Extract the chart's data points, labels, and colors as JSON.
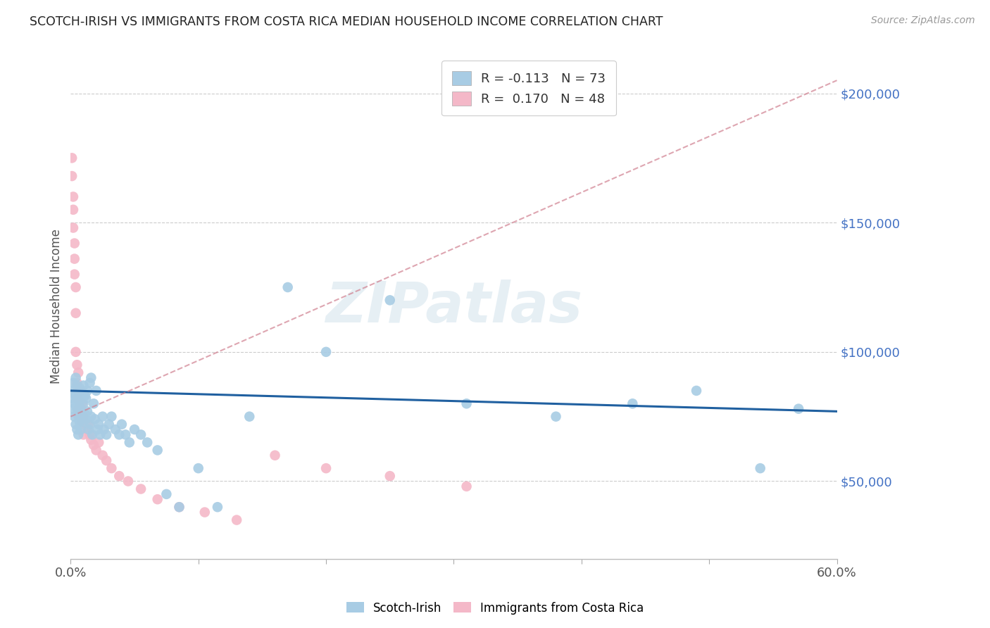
{
  "title": "SCOTCH-IRISH VS IMMIGRANTS FROM COSTA RICA MEDIAN HOUSEHOLD INCOME CORRELATION CHART",
  "source": "Source: ZipAtlas.com",
  "ylabel": "Median Household Income",
  "ylim": [
    20000,
    215000
  ],
  "xlim": [
    0.0,
    0.6
  ],
  "yticks": [
    50000,
    100000,
    150000,
    200000
  ],
  "watermark": "ZIPatlas",
  "color_blue": "#a8cce4",
  "color_pink": "#f4b8c8",
  "color_blue_line": "#2060a0",
  "color_pink_line": "#d04070",
  "color_pink_dashed": "#d08090",
  "color_grid": "#cccccc",
  "color_ytick_labels": "#4472c4",
  "scotch_irish_x": [
    0.001,
    0.002,
    0.002,
    0.003,
    0.003,
    0.003,
    0.004,
    0.004,
    0.004,
    0.005,
    0.005,
    0.005,
    0.006,
    0.006,
    0.006,
    0.006,
    0.007,
    0.007,
    0.007,
    0.008,
    0.008,
    0.008,
    0.009,
    0.009,
    0.01,
    0.01,
    0.01,
    0.011,
    0.011,
    0.012,
    0.012,
    0.013,
    0.013,
    0.014,
    0.015,
    0.015,
    0.016,
    0.016,
    0.017,
    0.018,
    0.019,
    0.02,
    0.021,
    0.022,
    0.023,
    0.025,
    0.026,
    0.028,
    0.03,
    0.032,
    0.035,
    0.038,
    0.04,
    0.043,
    0.046,
    0.05,
    0.055,
    0.06,
    0.068,
    0.075,
    0.085,
    0.1,
    0.115,
    0.14,
    0.17,
    0.2,
    0.25,
    0.31,
    0.38,
    0.44,
    0.49,
    0.54,
    0.57
  ],
  "scotch_irish_y": [
    82000,
    88000,
    78000,
    85000,
    80000,
    75000,
    90000,
    83000,
    72000,
    87000,
    78000,
    70000,
    84000,
    80000,
    75000,
    68000,
    86000,
    79000,
    73000,
    85000,
    77000,
    70000,
    83000,
    76000,
    87000,
    80000,
    73000,
    83000,
    76000,
    82000,
    74000,
    85000,
    77000,
    70000,
    88000,
    72000,
    90000,
    75000,
    68000,
    80000,
    74000,
    85000,
    70000,
    72000,
    68000,
    75000,
    70000,
    68000,
    72000,
    75000,
    70000,
    68000,
    72000,
    68000,
    65000,
    70000,
    68000,
    65000,
    62000,
    45000,
    40000,
    55000,
    40000,
    75000,
    125000,
    100000,
    120000,
    80000,
    75000,
    80000,
    85000,
    55000,
    78000
  ],
  "costa_rica_x": [
    0.001,
    0.001,
    0.002,
    0.002,
    0.002,
    0.003,
    0.003,
    0.003,
    0.004,
    0.004,
    0.004,
    0.005,
    0.005,
    0.005,
    0.006,
    0.006,
    0.006,
    0.007,
    0.007,
    0.008,
    0.008,
    0.009,
    0.009,
    0.01,
    0.01,
    0.011,
    0.012,
    0.013,
    0.014,
    0.015,
    0.016,
    0.018,
    0.02,
    0.022,
    0.025,
    0.028,
    0.032,
    0.038,
    0.045,
    0.055,
    0.068,
    0.085,
    0.105,
    0.13,
    0.16,
    0.2,
    0.25,
    0.31
  ],
  "costa_rica_y": [
    175000,
    168000,
    160000,
    155000,
    148000,
    142000,
    136000,
    130000,
    125000,
    115000,
    100000,
    95000,
    88000,
    82000,
    92000,
    85000,
    78000,
    80000,
    75000,
    85000,
    78000,
    80000,
    73000,
    75000,
    68000,
    72000,
    72000,
    70000,
    72000,
    68000,
    66000,
    64000,
    62000,
    65000,
    60000,
    58000,
    55000,
    52000,
    50000,
    47000,
    43000,
    40000,
    38000,
    35000,
    60000,
    55000,
    52000,
    48000
  ],
  "si_trend_x": [
    0.0,
    0.6
  ],
  "si_trend_y": [
    85000,
    77000
  ],
  "cr_trend_x": [
    0.0,
    0.6
  ],
  "cr_trend_y": [
    75000,
    205000
  ]
}
